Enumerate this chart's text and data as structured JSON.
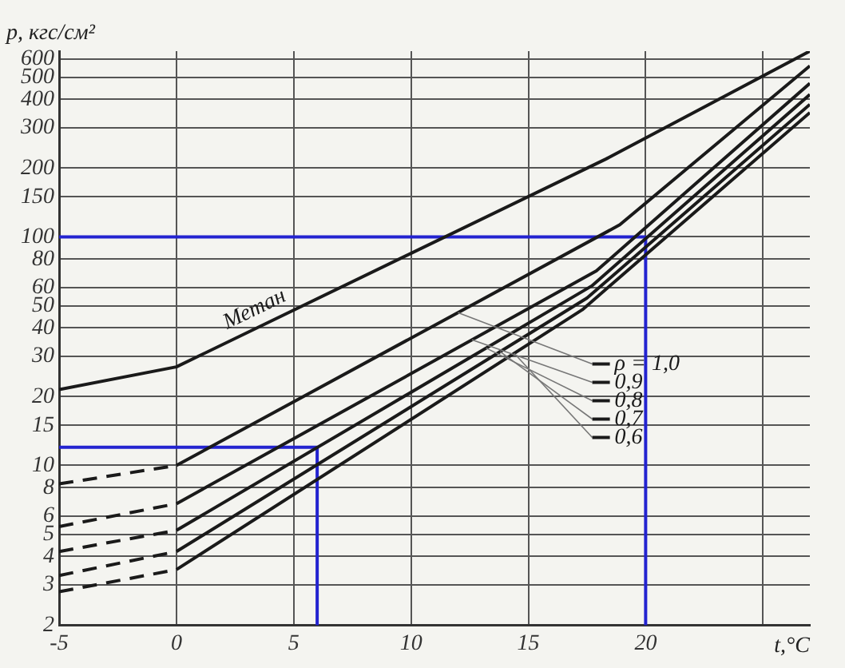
{
  "chart_data": {
    "type": "line",
    "xlabel": "t,°C",
    "ylabel": "p, кгс/см²",
    "log": "y",
    "grid": true,
    "legend": "right",
    "xlim": [
      -5,
      27
    ],
    "ylim": [
      2,
      650
    ],
    "xticks": [
      -5,
      0,
      5,
      10,
      15,
      20,
      {
        "value": 25,
        "label": null
      }
    ],
    "yticks": [
      2,
      3,
      4,
      5,
      6,
      8,
      10,
      15,
      20,
      30,
      40,
      50,
      60,
      80,
      100,
      150,
      200,
      300,
      400,
      500,
      600
    ],
    "series": [
      {
        "name": "Метан",
        "color": "#1a1a1a",
        "x": [
          -5,
          0,
          18.3,
          27
        ],
        "values": [
          21.5,
          27,
          219,
          650
        ]
      },
      {
        "name": "ρ = 1,0",
        "color": "#1a1a1a",
        "x": [
          0,
          18.9,
          27
        ],
        "values": [
          10,
          113,
          560
        ]
      },
      {
        "name": "0,9",
        "color": "#1a1a1a",
        "x": [
          0,
          17.9,
          27
        ],
        "values": [
          6.8,
          71,
          470
        ]
      },
      {
        "name": "0,8",
        "color": "#1a1a1a",
        "x": [
          0,
          17.7,
          27
        ],
        "values": [
          5.2,
          61,
          420
        ]
      },
      {
        "name": "0,7",
        "color": "#1a1a1a",
        "x": [
          0,
          17.5,
          27
        ],
        "values": [
          4.2,
          54,
          380
        ]
      },
      {
        "name": "0,6",
        "color": "#1a1a1a",
        "x": [
          0,
          17.3,
          27
        ],
        "values": [
          3.5,
          48,
          350
        ]
      },
      {
        "color": "#1a1a1a",
        "line_style": "dashed",
        "x": [
          -5,
          0
        ],
        "values": [
          8.3,
          10
        ]
      },
      {
        "color": "#1a1a1a",
        "line_style": "dashed",
        "x": [
          -5,
          0
        ],
        "values": [
          5.4,
          6.8
        ]
      },
      {
        "color": "#1a1a1a",
        "line_style": "dashed",
        "x": [
          -5,
          0
        ],
        "values": [
          4.2,
          5.2
        ]
      },
      {
        "color": "#1a1a1a",
        "line_style": "dashed",
        "x": [
          -5,
          0
        ],
        "values": [
          3.3,
          4.2
        ]
      },
      {
        "color": "#1a1a1a",
        "line_style": "dashed",
        "x": [
          -5,
          0
        ],
        "values": [
          2.8,
          3.5
        ]
      },
      {
        "color": "#2323d0",
        "x": [
          -5,
          6,
          6
        ],
        "values": [
          12,
          12,
          2
        ]
      },
      {
        "color": "#2323d0",
        "x": [
          -5,
          20,
          20
        ],
        "values": [
          100,
          100,
          2
        ]
      }
    ]
  }
}
